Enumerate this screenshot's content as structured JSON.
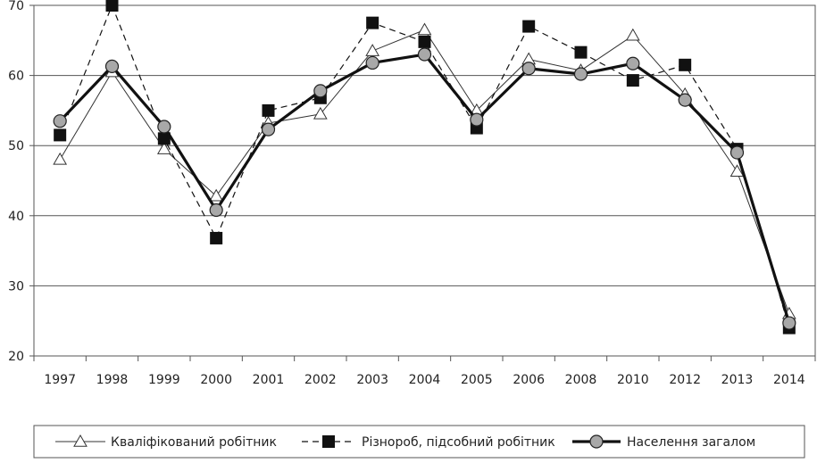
{
  "chart_data": {
    "type": "line",
    "title": "",
    "xlabel": "",
    "ylabel": "",
    "categories": [
      "1997",
      "1998",
      "1999",
      "2000",
      "2001",
      "2002",
      "2003",
      "2004",
      "2005",
      "2006",
      "2008",
      "2010",
      "2012",
      "2013",
      "2014"
    ],
    "ylim": [
      20,
      70
    ],
    "yticks": [
      20,
      30,
      40,
      50,
      60,
      70
    ],
    "grid": "horizontal",
    "legend_position": "bottom",
    "series": [
      {
        "name": "Кваліфікований робітник",
        "marker": "open-triangle",
        "line": "thin-solid",
        "color": "#333333",
        "values": [
          48.0,
          60.5,
          49.5,
          42.8,
          53.2,
          54.5,
          63.5,
          66.5,
          55.0,
          62.3,
          60.7,
          65.7,
          57.3,
          46.3,
          26.0
        ]
      },
      {
        "name": "Різнороб, підсобний робітник",
        "marker": "filled-square",
        "line": "dashed",
        "color": "#111111",
        "values": [
          51.5,
          70.0,
          51.0,
          36.8,
          55.0,
          56.8,
          67.5,
          64.8,
          52.5,
          67.0,
          63.3,
          59.3,
          61.5,
          49.5,
          24.0
        ]
      },
      {
        "name": "Населення загалом",
        "marker": "filled-circle",
        "line": "thick-solid",
        "color": "#111111",
        "values": [
          53.5,
          61.3,
          52.7,
          40.8,
          52.3,
          57.8,
          61.8,
          63.0,
          53.7,
          61.0,
          60.2,
          61.7,
          56.5,
          49.0,
          24.7
        ]
      }
    ]
  }
}
